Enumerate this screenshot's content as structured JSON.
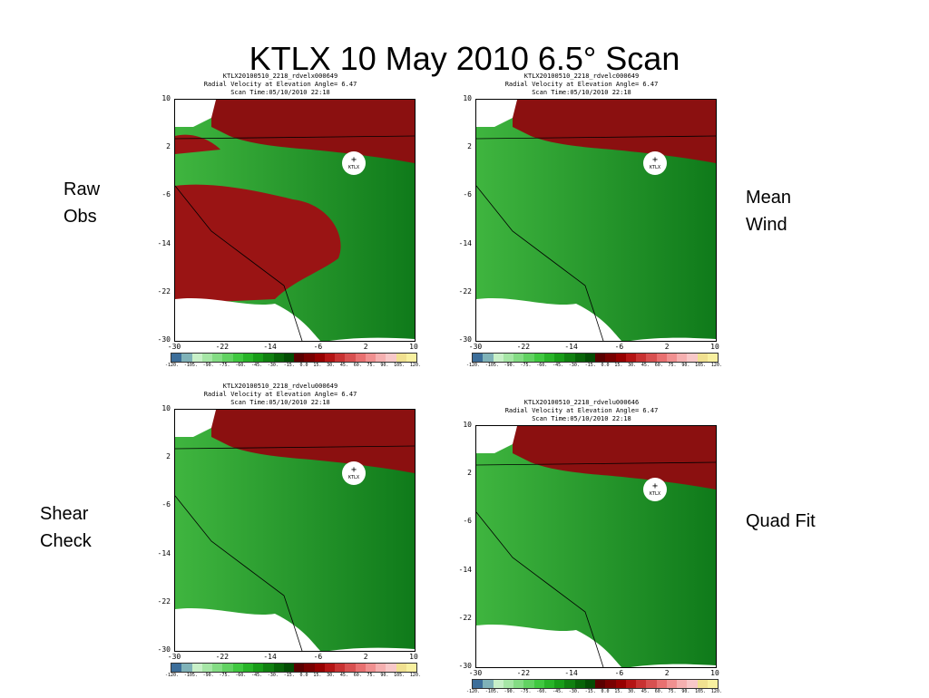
{
  "slide": {
    "title": "KTLX 10 May 2010 6.5° Scan"
  },
  "labels": {
    "raw": [
      "Raw",
      "Obs"
    ],
    "mean": [
      "Mean",
      "Wind"
    ],
    "shear": [
      "Shear",
      "Check"
    ],
    "quad": [
      "Quad Fit"
    ]
  },
  "panels": [
    {
      "header": [
        "KTLX20100510_2218_rdvelx000649",
        "Radial Velocity at Elevation Angle=  6.47",
        "Scan Time:05/10/2010 22:18"
      ]
    },
    {
      "header": [
        "KTLX20100510_2218_rdvelc000649",
        "Radial Velocity at Elevation Angle=  6.47",
        "Scan Time:05/10/2010 22:18"
      ]
    },
    {
      "header": [
        "KTLX20100510_2218_rdvelu000649",
        "Radial Velocity at Elevation Angle= 6.47",
        "Scan Time:05/10/2010 22:18"
      ]
    },
    {
      "header": [
        "KTLX20100510_2218_rdvelu000646",
        "Radial Velocity at Elevation Angle=  6.47",
        "Scan Time:05/10/2010 22:18"
      ]
    }
  ],
  "axes": {
    "y_ticks": [
      "10",
      "2",
      "-6",
      "-14",
      "-22",
      "-30"
    ],
    "x_ticks": [
      "-30",
      "-22",
      "-14",
      "-6",
      "2",
      "10"
    ]
  },
  "site_label": "KTLX",
  "colorbar": {
    "labels": [
      "-120.",
      "-105.",
      "-90.",
      "-75.",
      "-60.",
      "-45.",
      "-30.",
      "-15.",
      "0.0",
      "15.",
      "30.",
      "45.",
      "60.",
      "75.",
      "90.",
      "105.",
      "120."
    ],
    "colors": [
      "#3c6e9a",
      "#7fb2b8",
      "#c8f0c8",
      "#a6e6a6",
      "#84dc84",
      "#62d262",
      "#40c840",
      "#28b428",
      "#189c18",
      "#108010",
      "#086408",
      "#044c04",
      "#5a0000",
      "#780000",
      "#960000",
      "#b41414",
      "#c83232",
      "#d85050",
      "#e87070",
      "#f09090",
      "#f5b0b0",
      "#f8c8c8",
      "#f0e090",
      "#f8f0a0"
    ]
  }
}
